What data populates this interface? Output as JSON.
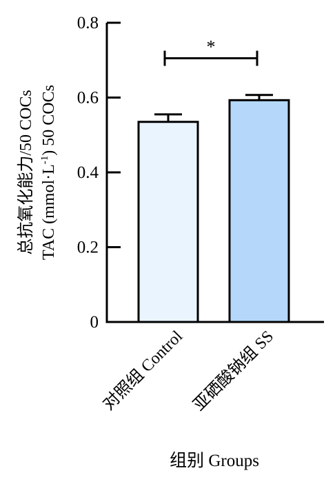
{
  "chart_data": {
    "type": "bar",
    "title": "",
    "categories": [
      "对照组 Control",
      "亚硒酸钠组 SS"
    ],
    "values": [
      0.535,
      0.593
    ],
    "errors": [
      0.02,
      0.014
    ],
    "bar_colors": [
      "#eaf4ff",
      "#b5d8fa"
    ],
    "ylim": [
      0,
      0.8
    ],
    "yticks": [
      0,
      0.2,
      0.4,
      0.6,
      0.8
    ],
    "ytick_labels": [
      "0",
      "0.2",
      "0.4",
      "0.6",
      "0.8"
    ],
    "ylabel_line1": "总抗氧化能力/50 COCs",
    "ylabel_line2_prefix": "TAC (mmol·L",
    "ylabel_line2_sup": "-1",
    "ylabel_line2_suffix": ") 50 COCs",
    "xlabel": "组别 Groups",
    "significance": {
      "between": [
        0,
        1
      ],
      "label": "*",
      "y": 0.705
    },
    "grid": false,
    "legend": "none"
  }
}
